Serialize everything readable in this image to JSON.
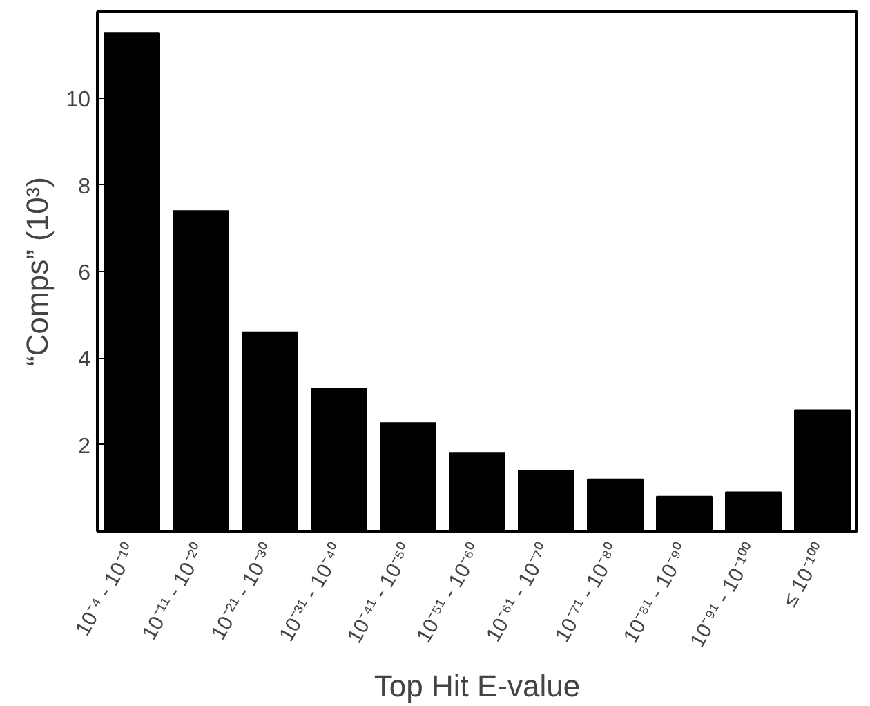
{
  "chart_data": {
    "type": "bar",
    "xlabel": "Top Hit E-value",
    "ylabel": "“Comps” (10³)",
    "categories": [
      "10⁻⁴ - 10⁻¹⁰",
      "10⁻¹¹ - 10⁻²⁰",
      "10⁻²¹ - 10⁻³⁰",
      "10⁻³¹ - 10⁻⁴⁰",
      "10⁻⁴¹ - 10⁻⁵⁰",
      "10⁻⁵¹ - 10⁻⁶⁰",
      "10⁻⁶¹ - 10⁻⁷⁰",
      "10⁻⁷¹ - 10⁻⁸⁰",
      "10⁻⁸¹ - 10⁻⁹⁰",
      "10⁻⁹¹ - 10⁻¹⁰⁰",
      "≤ 10⁻¹⁰⁰"
    ],
    "values": [
      11.5,
      7.4,
      4.6,
      3.3,
      2.5,
      1.8,
      1.4,
      1.2,
      0.8,
      0.9,
      2.8
    ],
    "color": "#000000",
    "ylim": [
      0,
      12
    ],
    "yticks": [
      2,
      4,
      6,
      8,
      10
    ],
    "grid": false
  }
}
